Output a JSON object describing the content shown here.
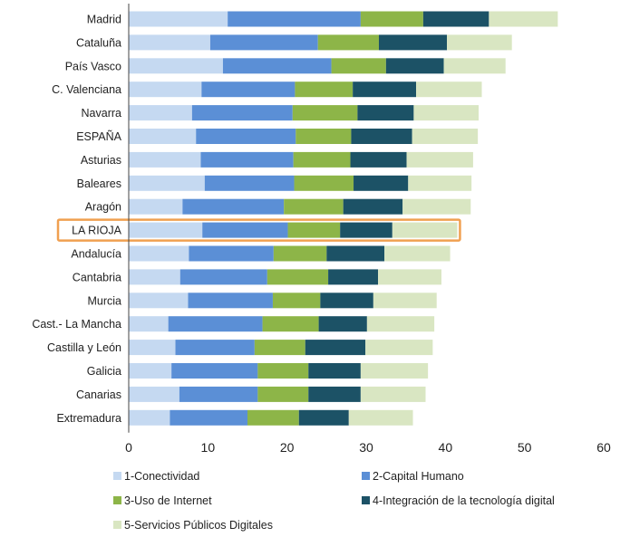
{
  "chart_data": {
    "type": "bar",
    "orientation": "horizontal",
    "stacked": true,
    "categories": [
      "Madrid",
      "Cataluña",
      "País Vasco",
      "C. Valenciana",
      "Navarra",
      "ESPAÑA",
      "Asturias",
      "Baleares",
      "Aragón",
      "LA RIOJA",
      "Andalucía",
      "Cantabria",
      "Murcia",
      "Cast.- La Mancha",
      "Castilla y León",
      "Galicia",
      "Canarias",
      "Extremadura"
    ],
    "highlight_category": "LA RIOJA",
    "highlight_color": "#f0a050",
    "series": [
      {
        "name": "1-Conectividad",
        "color": "#c5d9f1",
        "values": [
          12.5,
          10.3,
          11.9,
          9.2,
          8.0,
          8.5,
          9.1,
          9.6,
          6.8,
          9.3,
          7.6,
          6.5,
          7.5,
          5.0,
          5.9,
          5.4,
          6.4,
          5.2
        ]
      },
      {
        "name": "2-Capital Humano",
        "color": "#5b8fd6",
        "values": [
          16.8,
          13.6,
          13.7,
          11.8,
          12.7,
          12.6,
          11.7,
          11.3,
          12.8,
          10.8,
          10.7,
          11.0,
          10.7,
          11.9,
          10.0,
          10.9,
          9.9,
          9.8
        ]
      },
      {
        "name": "3-Uso de Internet",
        "color": "#8db548",
        "values": [
          7.9,
          7.7,
          6.9,
          7.3,
          8.2,
          7.0,
          7.2,
          7.5,
          7.5,
          6.6,
          6.7,
          7.7,
          6.0,
          7.1,
          6.4,
          6.4,
          6.4,
          6.5
        ]
      },
      {
        "name": "4-Integración de la tecnología digital",
        "color": "#1c5266",
        "values": [
          8.3,
          8.6,
          7.3,
          8.0,
          7.1,
          7.7,
          7.1,
          6.9,
          7.5,
          6.6,
          7.3,
          6.3,
          6.7,
          6.1,
          7.6,
          6.6,
          6.6,
          6.3
        ]
      },
      {
        "name": "5-Servicios Públicos Digitales",
        "color": "#d9e6c2",
        "values": [
          8.7,
          8.2,
          7.8,
          8.3,
          8.2,
          8.3,
          8.4,
          8.0,
          8.6,
          8.2,
          8.3,
          8.0,
          8.0,
          8.5,
          8.5,
          8.5,
          8.2,
          8.1
        ]
      }
    ],
    "xlim": [
      0,
      60
    ],
    "xticks": [
      0,
      10,
      20,
      30,
      40,
      50,
      60
    ],
    "grid": false,
    "legend_position": "bottom"
  }
}
